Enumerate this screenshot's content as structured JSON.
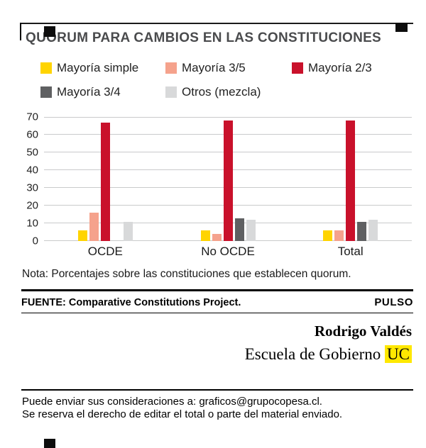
{
  "header": {
    "title": "QUORUM PARA CAMBIOS EN LAS CONSTITUCIONES"
  },
  "chart_data": {
    "type": "bar",
    "title": "QUORUM PARA CAMBIOS EN LAS CONSTITUCIONES",
    "categories": [
      "OCDE",
      "No OCDE",
      "Total"
    ],
    "series": [
      {
        "name": "Mayoría simple",
        "color": "#ffd400",
        "values": [
          6,
          6,
          6
        ]
      },
      {
        "name": "Mayoría 3/5",
        "color": "#f5a28c",
        "values": [
          16,
          4,
          6
        ]
      },
      {
        "name": "Mayoría 2/3",
        "color": "#c9112b",
        "values": [
          67,
          68,
          68
        ]
      },
      {
        "name": "Mayoría 3/4",
        "color": "#5f6062",
        "values": [
          0,
          13,
          11
        ]
      },
      {
        "name": "Otros (mezcla)",
        "color": "#d8d9da",
        "values": [
          11,
          12,
          12
        ]
      }
    ],
    "xlabel": "",
    "ylabel": "",
    "ylim": [
      0,
      70
    ],
    "yticks": [
      0,
      10,
      20,
      30,
      40,
      50,
      60,
      70
    ],
    "grid": true,
    "legend_position": "top"
  },
  "note": "Nota: Porcentajes sobre las constituciones que establecen quorum.",
  "footer": {
    "source_label": "FUENTE:",
    "source_text": " Comparative Constitutions Project.",
    "brand": "PULSO"
  },
  "credits": {
    "author": "Rodrigo Valdés",
    "affiliation_text": "Escuela de Gobierno ",
    "affiliation_highlight": "UC"
  },
  "contact": {
    "line1": "Puede enviar sus consideraciones a: graficos@grupocopesa.cl.",
    "line2": "Se reserva el derecho de editar el total o parte del material enviado."
  }
}
